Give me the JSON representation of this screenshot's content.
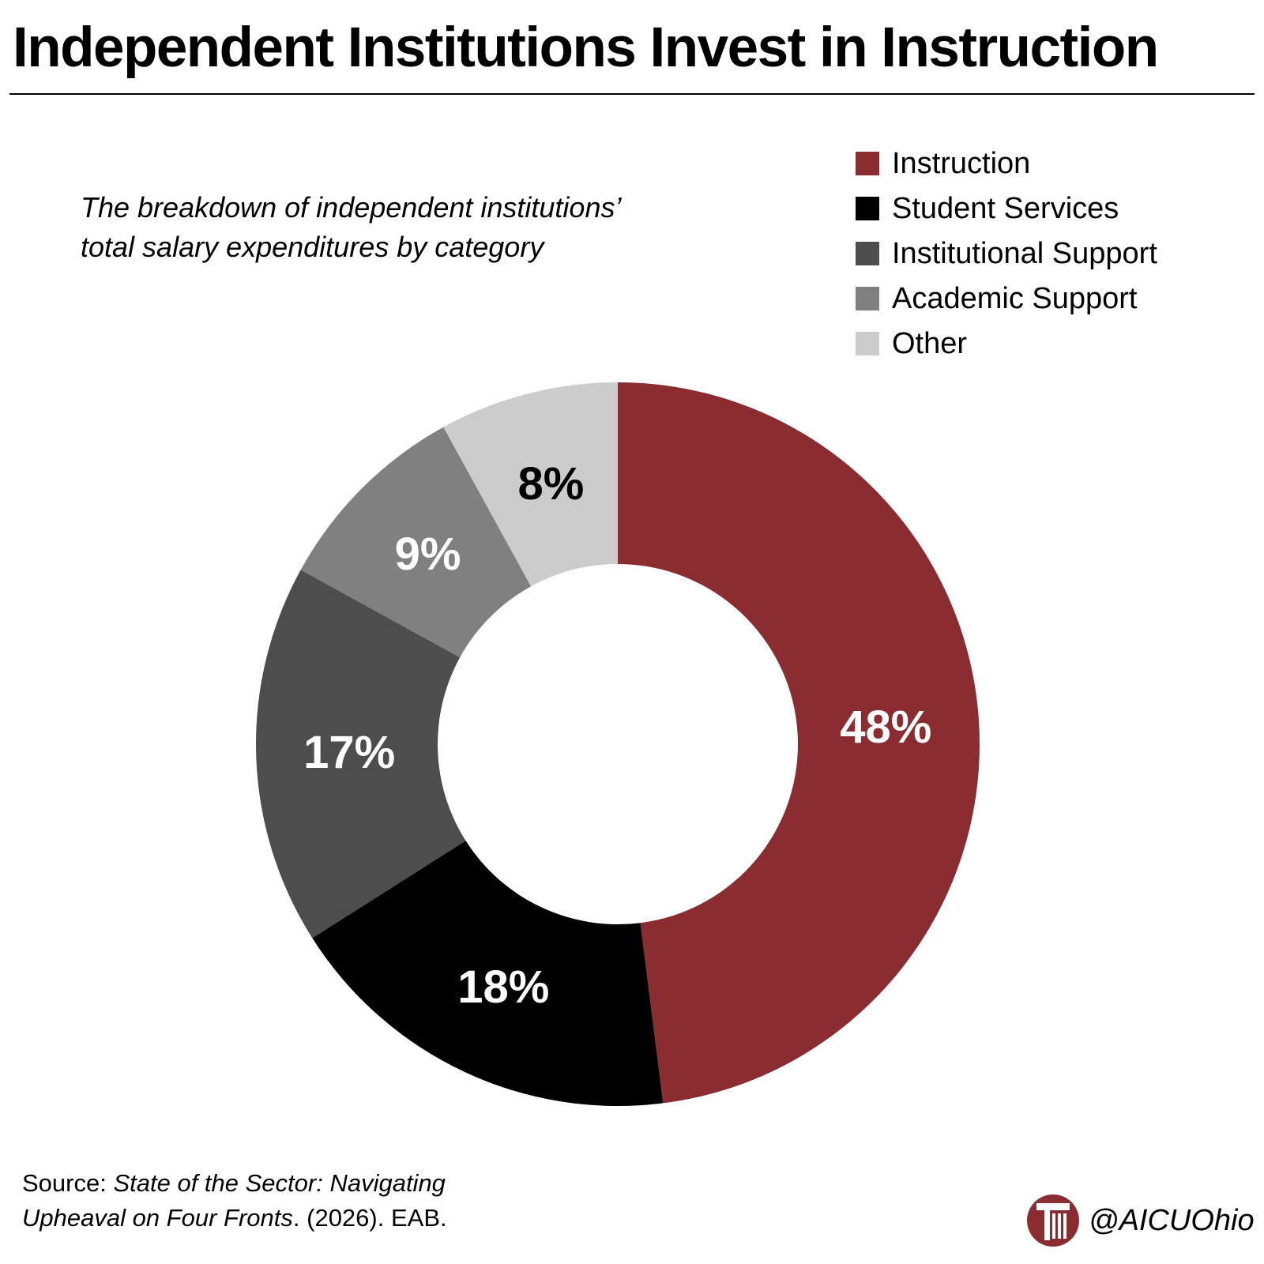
{
  "title": "Independent Institutions Invest in Instruction",
  "subtitle_lines": [
    "The breakdown of independent institutions’",
    "total salary expenditures by category"
  ],
  "legend": [
    {
      "label": "Instruction",
      "color": "#8b2c31"
    },
    {
      "label": "Student Services",
      "color": "#000000"
    },
    {
      "label": "Institutional Support",
      "color": "#4d4d4d"
    },
    {
      "label": "Academic Support",
      "color": "#808080"
    },
    {
      "label": "Other",
      "color": "#cccccc"
    }
  ],
  "chart_data": {
    "type": "pie",
    "variant": "donut",
    "title": "Independent Institutions Invest in Instruction",
    "subtitle": "The breakdown of independent institutions’ total salary expenditures by category",
    "categories": [
      "Instruction",
      "Student Services",
      "Institutional Support",
      "Academic Support",
      "Other"
    ],
    "values": [
      48,
      18,
      17,
      9,
      8
    ],
    "labels": [
      "48%",
      "18%",
      "17%",
      "9%",
      "8%"
    ],
    "label_colors": [
      "#ffffff",
      "#ffffff",
      "#ffffff",
      "#ffffff",
      "#000000"
    ],
    "colors": [
      "#8b2c31",
      "#000000",
      "#4d4d4d",
      "#808080",
      "#cccccc"
    ],
    "unit": "%",
    "legend_position": "top-right"
  },
  "source": {
    "prefix": "Source: ",
    "italic_line1": "State of the Sector: Navigating",
    "italic_line2": "Upheaval on Four Fronts",
    "suffix": ". (2026). EAB."
  },
  "brand": {
    "handle": "@AICUOhio",
    "logo_icon": "aicu-column-logo-icon",
    "logo_color": "#8b2c31"
  }
}
